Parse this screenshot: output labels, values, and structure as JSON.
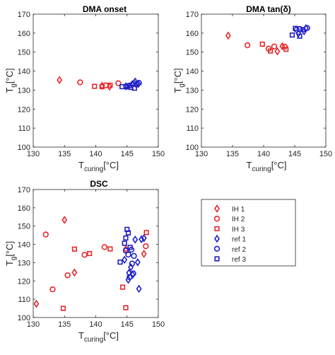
{
  "chart_data": [
    {
      "type": "scatter",
      "title": "DMA onset",
      "xlabel": {
        "main": "T",
        "sub": "curing",
        "unit": "[°C]"
      },
      "ylabel": {
        "main": "T",
        "sub": "g",
        "unit": "[°C]"
      },
      "xlim": [
        130,
        150
      ],
      "ylim": [
        100,
        170
      ],
      "xticks": [
        130,
        135,
        140,
        145,
        150
      ],
      "yticks": [
        100,
        110,
        120,
        130,
        140,
        150,
        160,
        170
      ],
      "series": [
        {
          "name": "IH 1",
          "marker": "diamond",
          "color": "#e8272a",
          "points": [
            [
              134.2,
              135.3
            ],
            [
              141.0,
              132.3
            ],
            [
              142.2,
              131.8
            ]
          ]
        },
        {
          "name": "IH 2",
          "marker": "circle",
          "color": "#e8272a",
          "points": [
            [
              137.5,
              134.1
            ],
            [
              141.6,
              132.5
            ],
            [
              143.6,
              133.6
            ]
          ]
        },
        {
          "name": "IH 3",
          "marker": "square",
          "color": "#e8272a",
          "points": [
            [
              139.8,
              132.0
            ],
            [
              141.0,
              131.8
            ],
            [
              142.3,
              132.6
            ]
          ]
        },
        {
          "name": "ref 1",
          "marker": "diamond",
          "color": "#1f1fc8",
          "points": [
            [
              144.8,
              132.0
            ],
            [
              145.8,
              133.0
            ],
            [
              146.3,
              134.5
            ],
            [
              146.8,
              133.2
            ]
          ]
        },
        {
          "name": "ref 2",
          "marker": "circle",
          "color": "#1f1fc8",
          "points": [
            [
              144.9,
              131.8
            ],
            [
              145.4,
              132.4
            ],
            [
              146.1,
              133.6
            ],
            [
              146.5,
              132.9
            ],
            [
              146.9,
              133.8
            ]
          ]
        },
        {
          "name": "ref 3",
          "marker": "square",
          "color": "#1f1fc8",
          "points": [
            [
              144.2,
              131.8
            ],
            [
              145.1,
              132.3
            ],
            [
              145.6,
              131.4
            ],
            [
              146.2,
              131.0
            ]
          ]
        }
      ]
    },
    {
      "type": "scatter",
      "title": "DMA tan(δ)",
      "xlabel": {
        "main": "T",
        "sub": "curing",
        "unit": "[°C]"
      },
      "ylabel": {
        "main": "T",
        "sub": "g",
        "unit": "[°C]"
      },
      "xlim": [
        130,
        150
      ],
      "ylim": [
        100,
        170
      ],
      "xticks": [
        130,
        135,
        140,
        145,
        150
      ],
      "yticks": [
        100,
        110,
        120,
        130,
        140,
        150,
        160,
        170
      ],
      "series": [
        {
          "name": "IH 1",
          "marker": "diamond",
          "color": "#e8272a",
          "points": [
            [
              134.3,
              158.7
            ],
            [
              142.2,
              150.4
            ],
            [
              143.0,
              153.1
            ]
          ]
        },
        {
          "name": "IH 2",
          "marker": "circle",
          "color": "#e8272a",
          "points": [
            [
              137.4,
              153.6
            ],
            [
              140.8,
              151.8
            ],
            [
              141.7,
              153.0
            ],
            [
              143.4,
              152.9
            ]
          ]
        },
        {
          "name": "IH 3",
          "marker": "square",
          "color": "#e8272a",
          "points": [
            [
              139.8,
              154.2
            ],
            [
              141.1,
              150.6
            ],
            [
              143.6,
              151.5
            ]
          ]
        },
        {
          "name": "ref 1",
          "marker": "diamond",
          "color": "#1f1fc8",
          "points": [
            [
              145.6,
              159.8
            ],
            [
              146.5,
              161.0
            ],
            [
              146.8,
              162.6
            ]
          ]
        },
        {
          "name": "ref 2",
          "marker": "circle",
          "color": "#1f1fc8",
          "points": [
            [
              145.3,
              161.8
            ],
            [
              145.8,
              162.2
            ],
            [
              147.0,
              162.7
            ]
          ]
        },
        {
          "name": "ref 3",
          "marker": "square",
          "color": "#1f1fc8",
          "points": [
            [
              144.6,
              159.0
            ],
            [
              145.1,
              162.5
            ],
            [
              145.8,
              158.4
            ],
            [
              146.3,
              161.9
            ]
          ]
        }
      ]
    },
    {
      "type": "scatter",
      "title": "DSC",
      "xlabel": {
        "main": "T",
        "sub": "curing",
        "unit": "[°C]"
      },
      "ylabel": {
        "main": "T",
        "sub": "g",
        "unit": "[°C]"
      },
      "xlim": [
        130,
        150
      ],
      "ylim": [
        100,
        170
      ],
      "xticks": [
        130,
        135,
        140,
        145,
        150
      ],
      "yticks": [
        100,
        110,
        120,
        130,
        140,
        150,
        160,
        170
      ],
      "series": [
        {
          "name": "IH 1",
          "marker": "diamond",
          "color": "#e8272a",
          "points": [
            [
              130.5,
              107.5
            ],
            [
              135.0,
              153.4
            ],
            [
              136.6,
              124.6
            ],
            [
              144.8,
              137.4
            ],
            [
              147.7,
              134.8
            ]
          ]
        },
        {
          "name": "IH 2",
          "marker": "circle",
          "color": "#e8272a",
          "points": [
            [
              132.0,
              145.4
            ],
            [
              133.1,
              115.4
            ],
            [
              135.5,
              123.1
            ],
            [
              138.2,
              134.3
            ],
            [
              141.4,
              138.5
            ],
            [
              148.0,
              139.0
            ]
          ]
        },
        {
          "name": "IH 3",
          "marker": "square",
          "color": "#e8272a",
          "points": [
            [
              134.8,
              105.0
            ],
            [
              136.6,
              137.4
            ],
            [
              139.0,
              135.0
            ],
            [
              142.3,
              137.5
            ],
            [
              144.3,
              116.6
            ],
            [
              144.8,
              105.4
            ],
            [
              148.1,
              146.5
            ]
          ]
        },
        {
          "name": "ref 1",
          "marker": "diamond",
          "color": "#1f1fc8",
          "points": [
            [
              144.6,
              131.6
            ],
            [
              145.2,
              120.6
            ],
            [
              145.3,
              124.4
            ],
            [
              145.6,
              127.5
            ],
            [
              145.9,
              123.4
            ],
            [
              146.3,
              142.6
            ],
            [
              146.7,
              130.2
            ],
            [
              147.3,
              142.8
            ],
            [
              147.7,
              143.4
            ],
            [
              146.9,
              115.7
            ]
          ]
        },
        {
          "name": "ref 2",
          "marker": "circle",
          "color": "#1f1fc8",
          "points": [
            [
              144.8,
              136.6
            ],
            [
              145.2,
              134.4
            ],
            [
              145.4,
              122.1
            ],
            [
              145.7,
              137.1
            ],
            [
              145.8,
              129.5
            ],
            [
              146.1,
              133.7
            ],
            [
              146.0,
              124.1
            ]
          ]
        },
        {
          "name": "ref 3",
          "marker": "square",
          "color": "#1f1fc8",
          "points": [
            [
              143.9,
              130.3
            ],
            [
              144.6,
              140.6
            ],
            [
              144.8,
              143.5
            ],
            [
              145.0,
              148.2
            ],
            [
              145.2,
              146.3
            ],
            [
              145.5,
              138.4
            ]
          ]
        }
      ]
    }
  ],
  "legend": {
    "items": [
      {
        "label": "IH 1",
        "marker": "diamond",
        "color": "#e8272a"
      },
      {
        "label": "IH 2",
        "marker": "circle",
        "color": "#e8272a"
      },
      {
        "label": "IH 3",
        "marker": "square",
        "color": "#e8272a"
      },
      {
        "label": "ref 1",
        "marker": "diamond",
        "color": "#1f1fc8"
      },
      {
        "label": "ref 2",
        "marker": "circle",
        "color": "#1f1fc8"
      },
      {
        "label": "ref 3",
        "marker": "square",
        "color": "#1f1fc8"
      }
    ]
  }
}
